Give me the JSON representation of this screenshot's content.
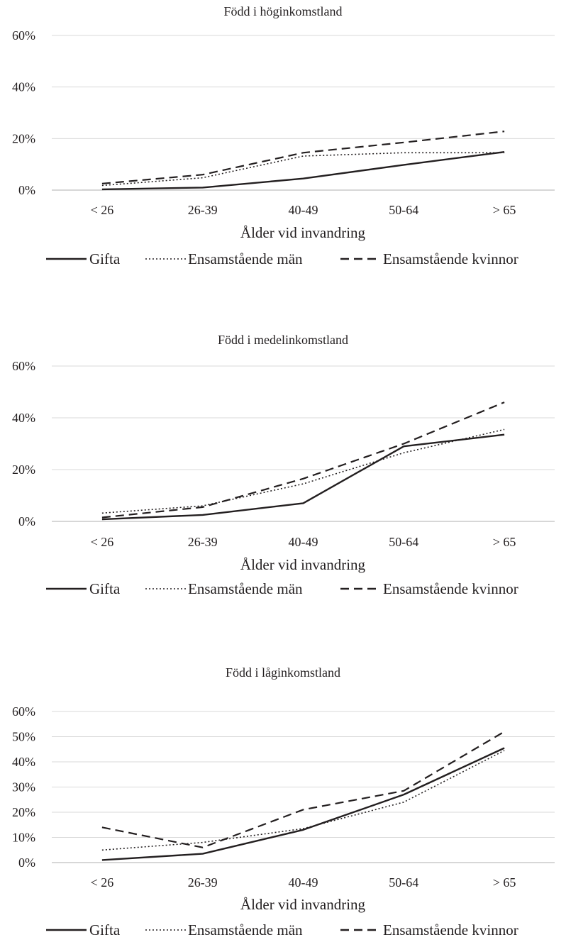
{
  "chart_data": [
    {
      "type": "line",
      "title": "Född i höginkomstland",
      "xlabel": "Ålder vid invandring",
      "ylabel": "",
      "categories": [
        "< 26",
        "26-39",
        "40-49",
        "50-64",
        "> 65"
      ],
      "ylim": [
        0,
        60
      ],
      "yticks": [
        "0%",
        "20%",
        "40%",
        "60%"
      ],
      "ytick_values": [
        0,
        20,
        40,
        60
      ],
      "grid": true,
      "legend_position": "bottom",
      "series": [
        {
          "name": "Gifta",
          "style": "solid",
          "values": [
            0.3,
            1.0,
            4.5,
            9.8,
            14.8
          ]
        },
        {
          "name": "Ensamstående män",
          "style": "dotted",
          "values": [
            1.8,
            4.8,
            13.2,
            14.5,
            14.5
          ]
        },
        {
          "name": "Ensamstående kvinnor",
          "style": "dashed",
          "values": [
            2.5,
            6.0,
            14.5,
            18.5,
            22.8
          ]
        }
      ]
    },
    {
      "type": "line",
      "title": "Född i medelinkomstland",
      "xlabel": "Ålder vid invandring",
      "ylabel": "",
      "categories": [
        "< 26",
        "26-39",
        "40-49",
        "50-64",
        "> 65"
      ],
      "ylim": [
        0,
        60
      ],
      "yticks": [
        "0%",
        "20%",
        "40%",
        "60%"
      ],
      "ytick_values": [
        0,
        20,
        40,
        60
      ],
      "grid": true,
      "legend_position": "bottom",
      "series": [
        {
          "name": "Gifta",
          "style": "solid",
          "values": [
            0.8,
            2.5,
            7.0,
            29.0,
            33.5
          ]
        },
        {
          "name": "Ensamstående män",
          "style": "dotted",
          "values": [
            3.2,
            6.0,
            14.5,
            26.5,
            35.5
          ]
        },
        {
          "name": "Ensamstående kvinnor",
          "style": "dashed",
          "values": [
            1.5,
            5.5,
            16.5,
            30.0,
            46.0
          ]
        }
      ]
    },
    {
      "type": "line",
      "title": "Född i låginkomstland",
      "xlabel": "Ålder vid invandring",
      "ylabel": "",
      "categories": [
        "< 26",
        "26-39",
        "40-49",
        "50-64",
        "> 65"
      ],
      "ylim": [
        0,
        60
      ],
      "yticks": [
        "0%",
        "10%",
        "20%",
        "30%",
        "40%",
        "50%",
        "60%"
      ],
      "ytick_values": [
        0,
        10,
        20,
        30,
        40,
        50,
        60
      ],
      "grid": true,
      "legend_position": "bottom",
      "series": [
        {
          "name": "Gifta",
          "style": "solid",
          "values": [
            1.0,
            3.5,
            13.0,
            27.0,
            45.5
          ]
        },
        {
          "name": "Ensamstående män",
          "style": "dotted",
          "values": [
            5.0,
            8.0,
            13.5,
            24.0,
            44.5
          ]
        },
        {
          "name": "Ensamstående kvinnor",
          "style": "dashed",
          "values": [
            14.0,
            6.0,
            21.0,
            28.5,
            52.0
          ]
        }
      ]
    }
  ],
  "colors": {
    "line": "#231f20",
    "text": "#231f20",
    "grid": "#d9d9d9",
    "baseline": "#bfbfbf"
  }
}
